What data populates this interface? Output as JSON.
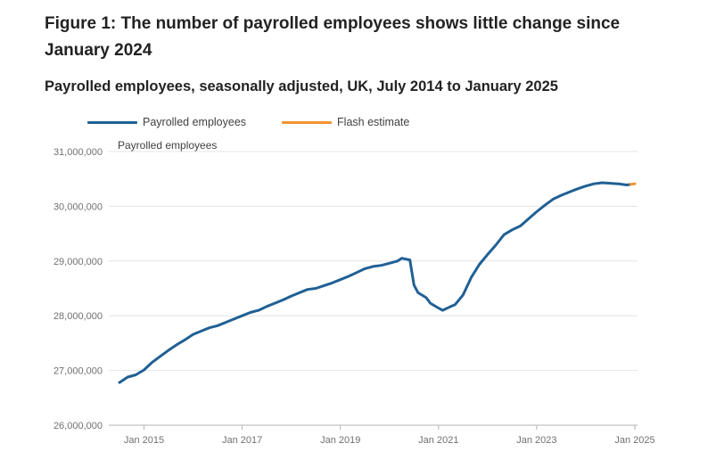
{
  "header": {
    "title": "Figure 1: The number of payrolled employees shows little change since January 2024",
    "subtitle": "Payrolled employees, seasonally adjusted, UK, July 2014 to January 2025"
  },
  "chart_data": {
    "type": "line",
    "title": "Figure 1: The number of payrolled employees shows little change since January 2024",
    "subtitle": "Payrolled employees, seasonally adjusted, UK, July 2014 to January 2025",
    "ylabel": "Payrolled employees",
    "xlabel": "",
    "ylim": [
      26000000,
      31000000
    ],
    "yticks": [
      26000000,
      27000000,
      28000000,
      29000000,
      30000000,
      31000000
    ],
    "ytick_labels": [
      "26,000,000",
      "27,000,000",
      "28,000,000",
      "29,000,000",
      "30,000,000",
      "31,000,000"
    ],
    "xlim": [
      "2014-07",
      "2025-01"
    ],
    "xticks": [
      "2015-01",
      "2017-01",
      "2019-01",
      "2021-01",
      "2023-01",
      "2025-01"
    ],
    "xtick_labels": [
      "Jan 2015",
      "Jan 2017",
      "Jan 2019",
      "Jan 2021",
      "Jan 2023",
      "Jan 2025"
    ],
    "grid": true,
    "legend_position": "top-left",
    "series": [
      {
        "name": "Payrolled employees",
        "color": "#206095",
        "points": [
          [
            "2014-07",
            26780000
          ],
          [
            "2014-09",
            26880000
          ],
          [
            "2014-11",
            26920000
          ],
          [
            "2015-01",
            27010000
          ],
          [
            "2015-03",
            27150000
          ],
          [
            "2015-05",
            27260000
          ],
          [
            "2015-07",
            27370000
          ],
          [
            "2015-09",
            27470000
          ],
          [
            "2015-11",
            27560000
          ],
          [
            "2016-01",
            27660000
          ],
          [
            "2016-03",
            27720000
          ],
          [
            "2016-05",
            27780000
          ],
          [
            "2016-07",
            27820000
          ],
          [
            "2016-09",
            27880000
          ],
          [
            "2016-11",
            27940000
          ],
          [
            "2017-01",
            28000000
          ],
          [
            "2017-03",
            28060000
          ],
          [
            "2017-05",
            28100000
          ],
          [
            "2017-07",
            28170000
          ],
          [
            "2017-09",
            28230000
          ],
          [
            "2017-11",
            28290000
          ],
          [
            "2018-01",
            28360000
          ],
          [
            "2018-03",
            28420000
          ],
          [
            "2018-05",
            28480000
          ],
          [
            "2018-07",
            28500000
          ],
          [
            "2018-09",
            28550000
          ],
          [
            "2018-11",
            28600000
          ],
          [
            "2019-01",
            28660000
          ],
          [
            "2019-03",
            28720000
          ],
          [
            "2019-05",
            28790000
          ],
          [
            "2019-07",
            28860000
          ],
          [
            "2019-09",
            28900000
          ],
          [
            "2019-11",
            28920000
          ],
          [
            "2020-01",
            28960000
          ],
          [
            "2020-03",
            29000000
          ],
          [
            "2020-04",
            29050000
          ],
          [
            "2020-06",
            29020000
          ],
          [
            "2020-07",
            28560000
          ],
          [
            "2020-08",
            28420000
          ],
          [
            "2020-10",
            28330000
          ],
          [
            "2020-11",
            28230000
          ],
          [
            "2021-01",
            28140000
          ],
          [
            "2021-02",
            28100000
          ],
          [
            "2021-04",
            28170000
          ],
          [
            "2021-05",
            28200000
          ],
          [
            "2021-07",
            28380000
          ],
          [
            "2021-09",
            28700000
          ],
          [
            "2021-11",
            28940000
          ],
          [
            "2022-01",
            29120000
          ],
          [
            "2022-03",
            29290000
          ],
          [
            "2022-05",
            29480000
          ],
          [
            "2022-07",
            29570000
          ],
          [
            "2022-09",
            29640000
          ],
          [
            "2022-11",
            29770000
          ],
          [
            "2023-01",
            29900000
          ],
          [
            "2023-03",
            30020000
          ],
          [
            "2023-05",
            30130000
          ],
          [
            "2023-07",
            30200000
          ],
          [
            "2023-09",
            30260000
          ],
          [
            "2023-11",
            30320000
          ],
          [
            "2024-01",
            30370000
          ],
          [
            "2024-03",
            30410000
          ],
          [
            "2024-05",
            30430000
          ],
          [
            "2024-07",
            30420000
          ],
          [
            "2024-09",
            30410000
          ],
          [
            "2024-11",
            30390000
          ],
          [
            "2024-12",
            30400000
          ]
        ]
      },
      {
        "name": "Flash estimate",
        "color": "#f39431",
        "points": [
          [
            "2024-12",
            30400000
          ],
          [
            "2025-01",
            30410000
          ]
        ]
      }
    ]
  }
}
